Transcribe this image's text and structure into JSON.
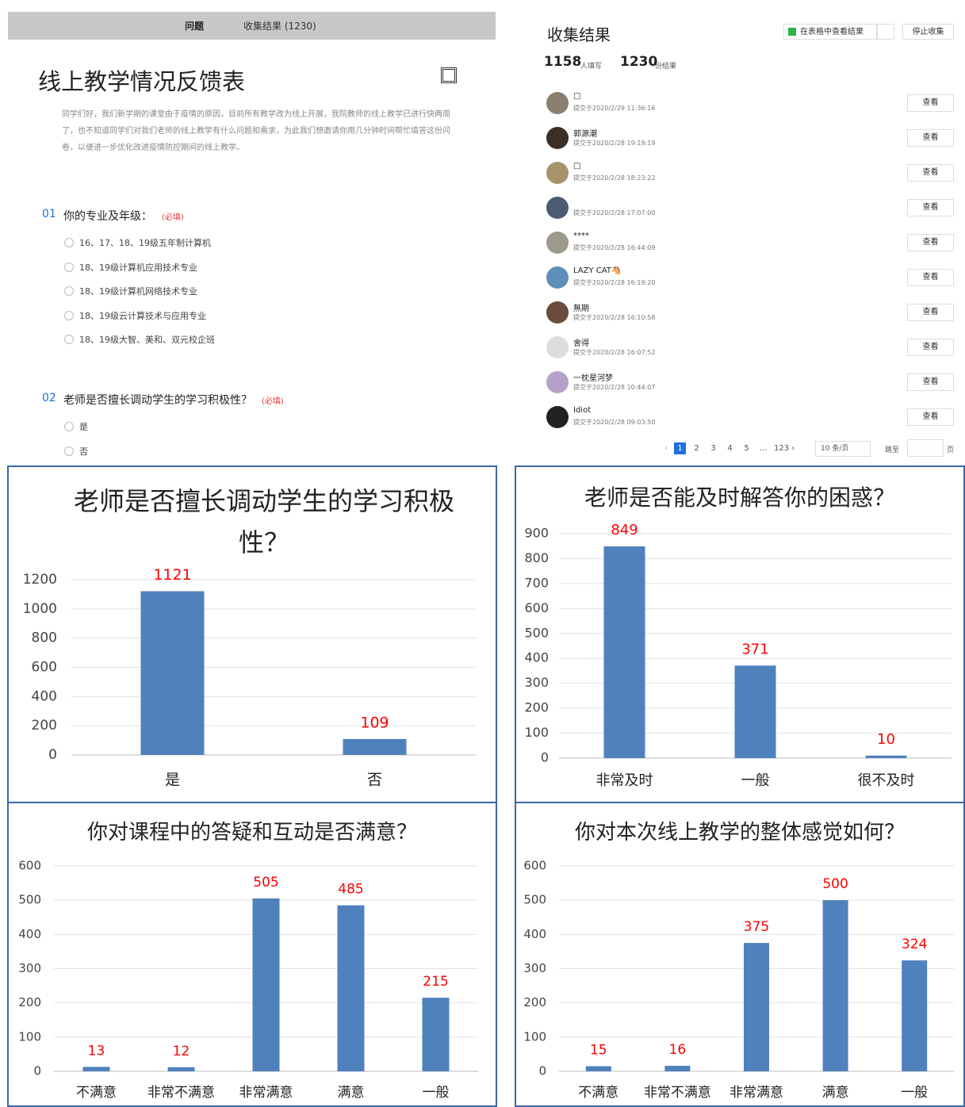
{
  "form": {
    "tabs": [
      "问题",
      "收集结果 (1230)"
    ],
    "title": "线上教学情况反馈表",
    "intro": "同学们好，我们新学期的课堂由于疫情的原因，目前所有教学改为线上开展，我院教师的线上教学已进行快两周了，也不知道同学们对我们老师的线上教学有什么问题和需求，为此我们想邀请你用几分钟时间帮忙填答这份问卷，以便进一步优化改进疫情防控期间的线上教学。",
    "questions": [
      {
        "number": "01",
        "text": "你的专业及年级：",
        "required": "(必填)",
        "options": [
          "16、17、18、19级五年制计算机",
          "18、19级计算机应用技术专业",
          "18、19级计算机网络技术专业",
          "18、19级云计算技术与应用专业",
          "18、19级大智、美和、双元校企班"
        ]
      },
      {
        "number": "02",
        "text": "老师是否擅长调动学生的学习积极性？",
        "required": "(必填)",
        "options": [
          "是",
          "否"
        ]
      }
    ]
  },
  "results": {
    "title": "收集结果",
    "view_button": "在表格中查看结果",
    "stop_button": "停止收集",
    "respondents": 1158,
    "respondents_unit": "人填写",
    "results_count": 1230,
    "results_unit": "份结果",
    "view_label": "查看",
    "entries": [
      {
        "name": "□",
        "time": "提交于2020/2/29 11:36:16"
      },
      {
        "name": "郭源潮",
        "time": "提交于2020/2/28 19:19:19"
      },
      {
        "name": "□",
        "time": "提交于2020/2/28 18:23:22"
      },
      {
        "time": "提交于2020/2/28 17:07:00"
      },
      {
        "name": "****",
        "time": "提交于2020/2/28 16:44:09"
      },
      {
        "name": "LAZY CAT🐴",
        "time": "提交于2020/2/28 16:19:20"
      },
      {
        "name": "無期",
        "time": "提交于2020/2/28 16:10:58"
      },
      {
        "name": "舍得",
        "time": "提交于2020/2/28 16:07:52"
      },
      {
        "name": "一枕星河梦",
        "time": "提交于2020/2/28 10:44:07"
      },
      {
        "name": "Idiot",
        "time": "提交于2020/2/28 09:03:50"
      }
    ],
    "pagination": {
      "pages": [
        "1",
        "2",
        "3",
        "4",
        "5",
        "...",
        "123 ›"
      ],
      "page_size": "10 条/页",
      "jump": "跳至",
      "page_unit": "页"
    }
  },
  "chart_data": [
    {
      "type": "bar",
      "title": "老师是否擅长调动学生的学习积极性？",
      "categories": [
        "是",
        "否"
      ],
      "values": [
        1121,
        109
      ],
      "color": "#4f81bd",
      "label_color": "#ff0000",
      "ylim": [
        0,
        1200
      ],
      "yticks": [
        0,
        200,
        400,
        600,
        800,
        1000,
        1200
      ],
      "grid": true
    },
    {
      "type": "bar",
      "title": "老师是否能及时解答你的困惑？",
      "categories": [
        "非常及时",
        "一般",
        "很不及时"
      ],
      "values": [
        849,
        371,
        10
      ],
      "color": "#4f81bd",
      "label_color": "#ff0000",
      "ylim": [
        0,
        900
      ],
      "yticks": [
        0,
        100,
        200,
        300,
        400,
        500,
        600,
        700,
        800,
        900
      ],
      "grid": true
    },
    {
      "type": "bar",
      "title": "你对课程中的答疑和互动是否满意？",
      "categories": [
        "不满意",
        "非常不满意",
        "非常满意",
        "满意",
        "一般"
      ],
      "values": [
        13,
        12,
        505,
        485,
        215
      ],
      "color": "#4f81bd",
      "label_color": "#ff0000",
      "ylim": [
        0,
        600
      ],
      "yticks": [
        0,
        100,
        200,
        300,
        400,
        500,
        600
      ],
      "grid": true
    },
    {
      "type": "bar",
      "title": "你对本次线上教学的整体感觉如何？",
      "categories": [
        "不满意",
        "非常不满意",
        "非常满意",
        "满意",
        "一般"
      ],
      "values": [
        15,
        16,
        375,
        500,
        324
      ],
      "color": "#4f81bd",
      "label_color": "#ff0000",
      "ylim": [
        0,
        600
      ],
      "yticks": [
        0,
        100,
        200,
        300,
        400,
        500,
        600
      ],
      "grid": true
    }
  ]
}
